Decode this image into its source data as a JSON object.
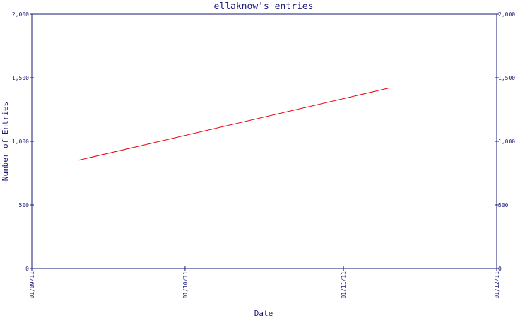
{
  "chart_data": {
    "type": "line",
    "title": "ellaknow's entries",
    "xlabel": "Date",
    "ylabel": "Number of Entries",
    "x_ticks": [
      "01/09/11",
      "01/10/11",
      "01/11/11",
      "01/12/11"
    ],
    "x_tick_values": [
      "2011-09-01",
      "2011-10-01",
      "2011-11-01",
      "2011-12-01"
    ],
    "xlim": [
      "2011-09-01",
      "2011-12-01"
    ],
    "y_ticks": [
      "0",
      "500",
      "1,000",
      "1,500",
      "2,000"
    ],
    "y_tick_values": [
      0,
      500,
      1000,
      1500,
      2000
    ],
    "ylim": [
      0,
      2000
    ],
    "grid": false,
    "legend": "none",
    "series": [
      {
        "color": "#e8000b",
        "points": [
          {
            "x": "2011-09-10",
            "y": 850
          },
          {
            "x": "2011-11-10",
            "y": 1420
          }
        ]
      }
    ],
    "colors": {
      "axis": "#1a1a7a",
      "line": "#e8000b",
      "background": "#ffffff"
    }
  }
}
